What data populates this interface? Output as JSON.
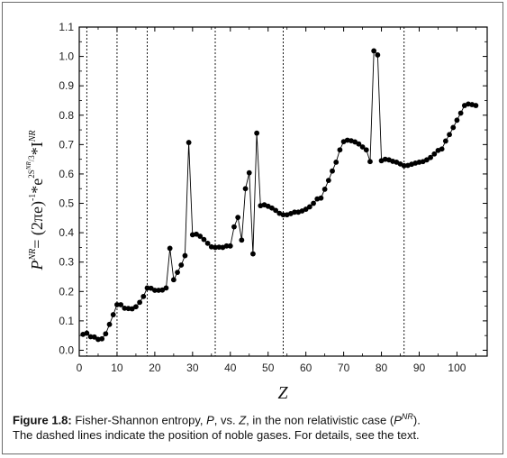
{
  "chart_data": {
    "type": "line",
    "xlabel": "Z",
    "ylabel": "P^NR = (2πe)^-1 * e^(2S^NR/3) * I^NR",
    "ylabel_parts": {
      "P": "P",
      "NR_sup": "NR",
      "eq": "= (2πe)",
      "minus_one": "-1",
      "star_e": "*e",
      "exp": "2S",
      "exp_sup": "NR",
      "exp_div": "/3",
      "star_I": "*I",
      "I_sup": "NR"
    },
    "xlim": [
      0,
      108
    ],
    "ylim": [
      -0.02,
      1.1
    ],
    "xticks": [
      0,
      10,
      20,
      30,
      40,
      50,
      60,
      70,
      80,
      90,
      100
    ],
    "yticks": [
      0.0,
      0.1,
      0.2,
      0.3,
      0.4,
      0.5,
      0.6,
      0.7,
      0.8,
      0.9,
      1.0,
      1.1
    ],
    "noble_gases_z": [
      2,
      10,
      18,
      36,
      54,
      86
    ],
    "grid": false,
    "series": [
      {
        "values": [
          [
            1,
            0.054
          ],
          [
            2,
            0.058
          ],
          [
            3,
            0.046
          ],
          [
            4,
            0.045
          ],
          [
            5,
            0.037
          ],
          [
            6,
            0.039
          ],
          [
            7,
            0.056
          ],
          [
            8,
            0.088
          ],
          [
            9,
            0.121
          ],
          [
            10,
            0.155
          ],
          [
            11,
            0.155
          ],
          [
            12,
            0.143
          ],
          [
            13,
            0.142
          ],
          [
            14,
            0.141
          ],
          [
            15,
            0.148
          ],
          [
            16,
            0.163
          ],
          [
            17,
            0.183
          ],
          [
            18,
            0.212
          ],
          [
            19,
            0.211
          ],
          [
            20,
            0.204
          ],
          [
            21,
            0.204
          ],
          [
            22,
            0.205
          ],
          [
            23,
            0.212
          ],
          [
            24,
            0.347
          ],
          [
            25,
            0.24
          ],
          [
            26,
            0.265
          ],
          [
            27,
            0.29
          ],
          [
            28,
            0.322
          ],
          [
            29,
            0.707
          ],
          [
            30,
            0.393
          ],
          [
            31,
            0.395
          ],
          [
            32,
            0.388
          ],
          [
            33,
            0.377
          ],
          [
            34,
            0.364
          ],
          [
            35,
            0.352
          ],
          [
            36,
            0.35
          ],
          [
            37,
            0.351
          ],
          [
            38,
            0.35
          ],
          [
            39,
            0.355
          ],
          [
            40,
            0.355
          ],
          [
            41,
            0.42
          ],
          [
            42,
            0.452
          ],
          [
            43,
            0.375
          ],
          [
            44,
            0.55
          ],
          [
            45,
            0.604
          ],
          [
            46,
            0.328
          ],
          [
            47,
            0.739
          ],
          [
            48,
            0.492
          ],
          [
            49,
            0.495
          ],
          [
            50,
            0.49
          ],
          [
            51,
            0.484
          ],
          [
            52,
            0.476
          ],
          [
            53,
            0.466
          ],
          [
            54,
            0.461
          ],
          [
            55,
            0.461
          ],
          [
            56,
            0.465
          ],
          [
            57,
            0.47
          ],
          [
            58,
            0.47
          ],
          [
            59,
            0.474
          ],
          [
            60,
            0.48
          ],
          [
            61,
            0.488
          ],
          [
            62,
            0.5
          ],
          [
            63,
            0.515
          ],
          [
            64,
            0.518
          ],
          [
            65,
            0.548
          ],
          [
            66,
            0.578
          ],
          [
            67,
            0.61
          ],
          [
            68,
            0.64
          ],
          [
            69,
            0.682
          ],
          [
            70,
            0.71
          ],
          [
            71,
            0.715
          ],
          [
            72,
            0.713
          ],
          [
            73,
            0.709
          ],
          [
            74,
            0.702
          ],
          [
            75,
            0.692
          ],
          [
            76,
            0.682
          ],
          [
            77,
            0.642
          ],
          [
            78,
            1.019
          ],
          [
            79,
            1.005
          ],
          [
            80,
            0.645
          ],
          [
            81,
            0.65
          ],
          [
            82,
            0.648
          ],
          [
            83,
            0.643
          ],
          [
            84,
            0.64
          ],
          [
            85,
            0.634
          ],
          [
            86,
            0.628
          ],
          [
            87,
            0.629
          ],
          [
            88,
            0.633
          ],
          [
            89,
            0.637
          ],
          [
            90,
            0.64
          ],
          [
            91,
            0.642
          ],
          [
            92,
            0.648
          ],
          [
            93,
            0.656
          ],
          [
            94,
            0.668
          ],
          [
            95,
            0.68
          ],
          [
            96,
            0.685
          ],
          [
            97,
            0.712
          ],
          [
            98,
            0.734
          ],
          [
            99,
            0.758
          ],
          [
            100,
            0.783
          ],
          [
            101,
            0.807
          ],
          [
            102,
            0.833
          ],
          [
            103,
            0.838
          ],
          [
            104,
            0.836
          ],
          [
            105,
            0.833
          ]
        ]
      }
    ]
  },
  "caption": {
    "label": "Figure 1.8:",
    "text_1": " Fisher-Shannon entropy, ",
    "p": "P",
    "text_2": ", vs. ",
    "z": "Z",
    "text_3": ", in the non relativistic case (",
    "pnr_p": "P",
    "pnr_sup": "NR",
    "text_4": ").",
    "line2": "The dashed lines indicate the position of noble gases. For details, see the text."
  }
}
